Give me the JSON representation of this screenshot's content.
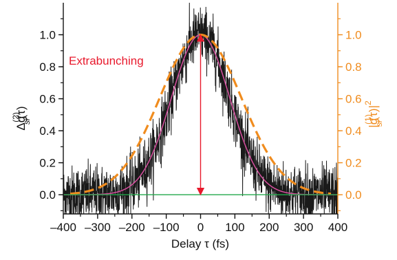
{
  "chart_data": {
    "type": "line",
    "xlabel": "Delay τ (fs)",
    "ylabel_left": {
      "base": "Δg",
      "sup": "(2)",
      "sub": "si",
      "tail": "(τ)"
    },
    "ylabel_right": {
      "open": "|g",
      "sup": "(1)",
      "sub": "si",
      "mid": "(τ)|",
      "sup2": "2"
    },
    "xlim": [
      -400,
      400
    ],
    "ylim_left": [
      -0.12,
      1.2
    ],
    "ylim_right": [
      -0.12,
      1.2
    ],
    "x_ticks": [
      -400,
      -300,
      -200,
      -100,
      0,
      100,
      200,
      300,
      400
    ],
    "x_tick_labels": [
      "–400",
      "–300",
      "–200",
      "–100",
      "0",
      "100",
      "200",
      "300",
      "400"
    ],
    "y_ticks": [
      0.0,
      0.2,
      0.4,
      0.6,
      0.8,
      1.0
    ],
    "y_tick_labels": [
      "0.0",
      "0.2",
      "0.4",
      "0.6",
      "0.8",
      "1.0"
    ],
    "series": [
      {
        "kind": "noisy-measurement",
        "color": "#1a1a1a",
        "peak": 1.0,
        "fwhm_fs": 200,
        "noise_level": 0.09
      },
      {
        "kind": "gaussian-fit",
        "color": "#d94fa0",
        "peak": 1.0,
        "fwhm_fs": 200
      },
      {
        "kind": "dashed-fit",
        "color": "#f08c1e",
        "peak": 1.0,
        "fwhm_fs": 280
      },
      {
        "kind": "baseline",
        "color": "#22a84a",
        "value": 0.0
      }
    ],
    "annotation": {
      "text": "Extrabunching",
      "color": "#e8192c",
      "x": 0,
      "y_from": 1.0,
      "y_to": 0.0
    },
    "grid": false,
    "legend": "none"
  }
}
